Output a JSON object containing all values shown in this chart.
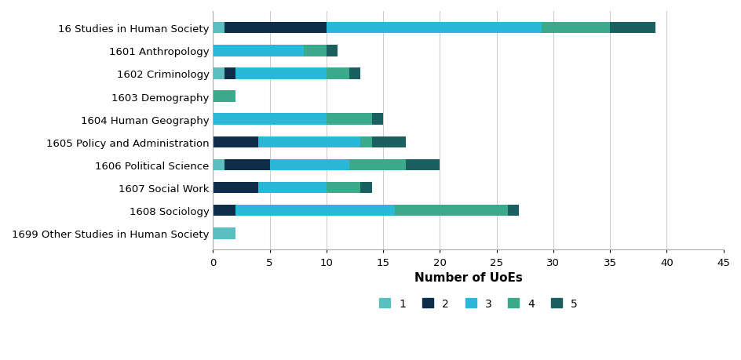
{
  "categories": [
    "16 Studies in Human Society",
    "1601 Anthropology",
    "1602 Criminology",
    "1603 Demography",
    "1604 Human Geography",
    "1605 Policy and Administration",
    "1606 Political Science",
    "1607 Social Work",
    "1608 Sociology",
    "1699 Other Studies in Human Society"
  ],
  "rating1": [
    1,
    0,
    1,
    0,
    0,
    0,
    1,
    0,
    0,
    2
  ],
  "rating2": [
    9,
    0,
    1,
    0,
    0,
    4,
    4,
    4,
    2,
    0
  ],
  "rating3": [
    19,
    8,
    8,
    0,
    10,
    9,
    7,
    6,
    14,
    0
  ],
  "rating4": [
    6,
    2,
    2,
    2,
    4,
    1,
    5,
    3,
    10,
    0
  ],
  "rating5": [
    4,
    1,
    1,
    0,
    1,
    3,
    3,
    1,
    1,
    0
  ],
  "colors": {
    "1": "#5bbfbf",
    "2": "#0d2d4a",
    "3": "#29b8d8",
    "4": "#3aaa8a",
    "5": "#1a6060"
  },
  "xlabel": "Number of UoEs",
  "xlim": [
    0,
    45
  ],
  "xticks": [
    0,
    5,
    10,
    15,
    20,
    25,
    30,
    35,
    40,
    45
  ],
  "grid_color": "#cccccc",
  "bar_height": 0.5,
  "background_color": "#ffffff",
  "xlabel_fontsize": 11,
  "tick_fontsize": 9.5,
  "legend_fontsize": 10,
  "category_fontsize": 9.5
}
